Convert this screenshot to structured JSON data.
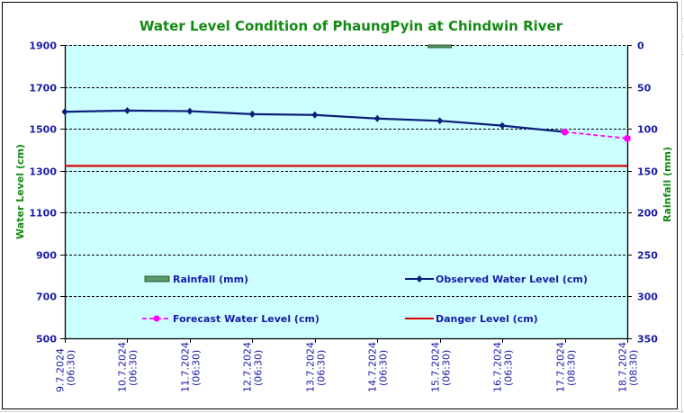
{
  "chart_data": {
    "type": "line",
    "title": "Water Level Condition of PhaungPyin at Chindwin River",
    "ylabel": "Water Level (cm)",
    "y2label": "Rainfall (mm)",
    "xlabel": "",
    "categories": [
      [
        "9.7.2024",
        "(06:30)"
      ],
      [
        "10.7.2024",
        "(06:30)"
      ],
      [
        "11.7.2024",
        "(06:30)"
      ],
      [
        "12.7.2024",
        "(06:30)"
      ],
      [
        "13.7.2024",
        "(06:30)"
      ],
      [
        "14.7.2024",
        "(06:30)"
      ],
      [
        "15.7.2024",
        "(06:30)"
      ],
      [
        "16.7.2024",
        "(06:30)"
      ],
      [
        "17.7.2024",
        "(08:30)"
      ],
      [
        "18.7.2024",
        "(08:30)"
      ]
    ],
    "ylim": [
      500,
      1900
    ],
    "yticks": [
      500,
      700,
      900,
      1100,
      1300,
      1500,
      1700,
      1900
    ],
    "y2lim": [
      350,
      0
    ],
    "y2ticks": [
      0,
      50,
      100,
      150,
      200,
      250,
      300,
      350
    ],
    "grid": true,
    "series": [
      {
        "name": "Rainfall (mm)",
        "kind": "bar",
        "axis": "right",
        "color": "#5a9a6a",
        "values": [
          0,
          0,
          0,
          0,
          0,
          0,
          2,
          0,
          0,
          0
        ]
      },
      {
        "name": "Observed Water Level (cm)",
        "kind": "line",
        "axis": "left",
        "color": "#0b1f7a",
        "values": [
          1581,
          1587,
          1584,
          1570,
          1566,
          1549,
          1538,
          1515,
          1485,
          null
        ]
      },
      {
        "name": "Forecast Water Level (cm)",
        "kind": "dashed-line",
        "axis": "left",
        "color": "#ff00ff",
        "values": [
          null,
          null,
          null,
          null,
          null,
          null,
          null,
          null,
          1485,
          1454
        ]
      },
      {
        "name": "Danger Level (cm)",
        "kind": "hline",
        "axis": "left",
        "color": "#e00000",
        "value": 1323
      }
    ],
    "legend": "inside-bottom"
  },
  "colors": {
    "title": "#138a13",
    "axis_text": "#1a1aa8",
    "axis_label": "#138a13",
    "plot_bg": "#ccffff"
  }
}
